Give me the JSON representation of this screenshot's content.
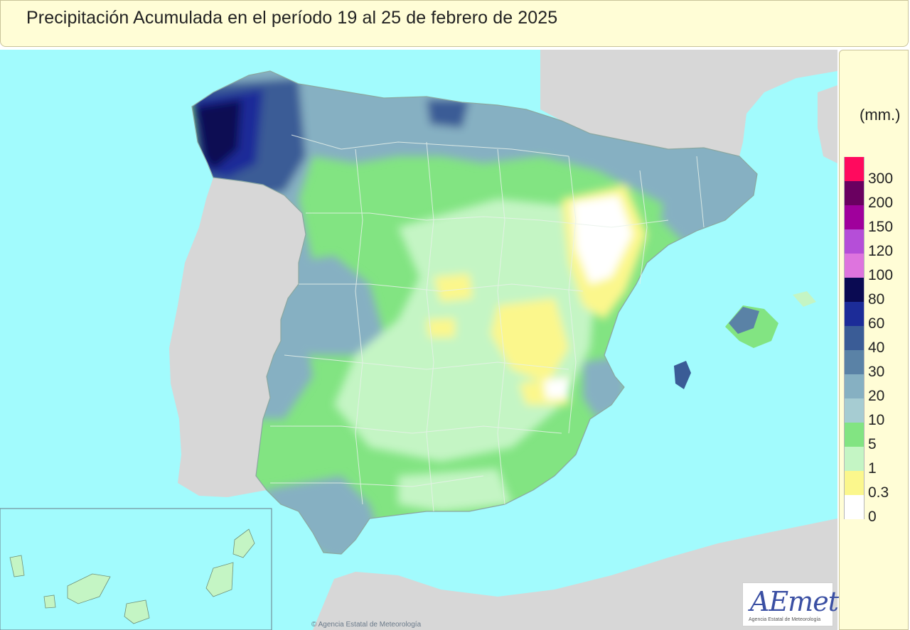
{
  "header": {
    "title": "Precipitación Acumulada en el período 19 al 25 de febrero de 2025"
  },
  "legend": {
    "units": "(mm.)",
    "classes": [
      {
        "label": "300",
        "color": "#ff0a5e"
      },
      {
        "label": "200",
        "color": "#6a0060"
      },
      {
        "label": "150",
        "color": "#a0009c"
      },
      {
        "label": "120",
        "color": "#b54ed8"
      },
      {
        "label": "100",
        "color": "#de74de"
      },
      {
        "label": "80",
        "color": "#0a0a52"
      },
      {
        "label": "60",
        "color": "#1c2c98"
      },
      {
        "label": "40",
        "color": "#3a5c96"
      },
      {
        "label": "30",
        "color": "#5a82a6"
      },
      {
        "label": "20",
        "color": "#86b0c2"
      },
      {
        "label": "10",
        "color": "#a6ccd2"
      },
      {
        "label": "5",
        "color": "#82e482"
      },
      {
        "label": "1",
        "color": "#c4f5c4"
      },
      {
        "label": "0.3",
        "color": "#fbf78c"
      },
      {
        "label": "0",
        "color": "#ffffff"
      }
    ]
  },
  "logo": {
    "brand": "AEmet",
    "subtitle": "Agencia Estatal de Meteorología"
  },
  "footer": {
    "credit": "© Agencia Estatal de Meteorología"
  },
  "colors": {
    "sea": "#a2fbfd",
    "foreign_land": "#d7d7d7",
    "panel_background": "#fffdd6"
  }
}
